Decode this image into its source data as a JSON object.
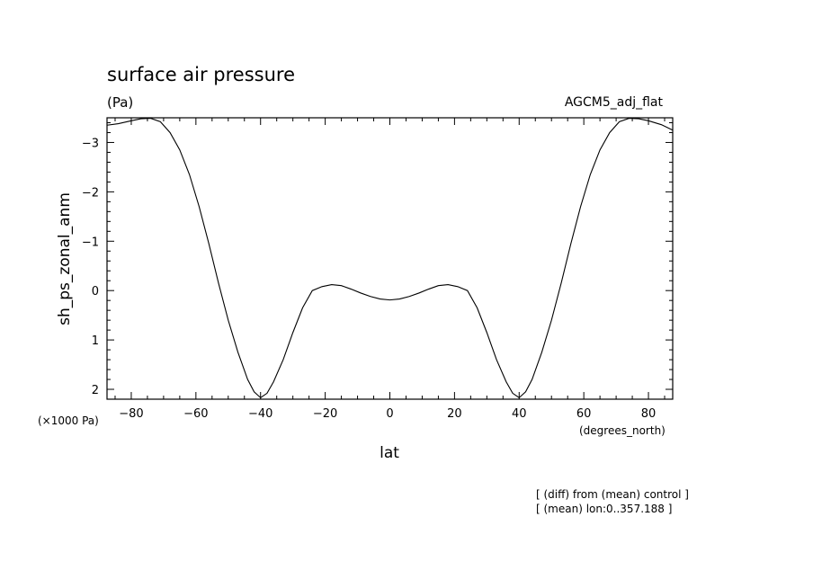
{
  "chart_data": {
    "type": "line",
    "title": "surface air pressure",
    "units": "(Pa)",
    "dataset": "AGCM5_adj_flat",
    "xlabel": "lat",
    "ylabel": "sh_ps_zonal_anm",
    "x_units": "(degrees_north)",
    "y_scale": "(×1000 Pa)",
    "notes": [
      "[ (diff) from (mean) control ]",
      "[ (mean) lon:0..357.188 ]"
    ],
    "xlim": [
      -87.5,
      87.5
    ],
    "ylim": [
      2.2,
      -3.5
    ],
    "y_inverted": true,
    "x_ticks": [
      -80,
      -60,
      -40,
      -20,
      0,
      20,
      40,
      60,
      80
    ],
    "x_tick_labels": [
      "−80",
      "−60",
      "−40",
      "−20",
      "0",
      "20",
      "40",
      "60",
      "80"
    ],
    "y_ticks": [
      -3,
      -2,
      -1,
      0,
      1,
      2
    ],
    "y_tick_labels": [
      "−3",
      "−2",
      "−1",
      "0",
      "1",
      "2"
    ],
    "grid": false,
    "series": [
      {
        "x": [
          -87.5,
          -84,
          -80,
          -77,
          -74,
          -71,
          -68,
          -65,
          -62,
          -59,
          -56,
          -53,
          -50,
          -47,
          -44,
          -42,
          -40,
          -38,
          -36,
          -33,
          -30,
          -27,
          -24,
          -21,
          -18,
          -15,
          -12,
          -9,
          -6,
          -3,
          0,
          3,
          6,
          9,
          12,
          15,
          18,
          21,
          24,
          27,
          30,
          33,
          36,
          38,
          40,
          42,
          44,
          47,
          50,
          53,
          56,
          59,
          62,
          65,
          68,
          71,
          74,
          77,
          80,
          84,
          87.5
        ],
        "y": [
          -3.35,
          -3.38,
          -3.44,
          -3.48,
          -3.49,
          -3.42,
          -3.2,
          -2.85,
          -2.35,
          -1.7,
          -0.95,
          -0.15,
          0.6,
          1.25,
          1.8,
          2.05,
          2.17,
          2.08,
          1.85,
          1.4,
          0.85,
          0.35,
          0.0,
          -0.08,
          -0.12,
          -0.1,
          -0.03,
          0.05,
          0.12,
          0.17,
          0.19,
          0.17,
          0.12,
          0.05,
          -0.03,
          -0.1,
          -0.12,
          -0.08,
          0.0,
          0.35,
          0.85,
          1.4,
          1.85,
          2.08,
          2.17,
          2.05,
          1.8,
          1.25,
          0.6,
          -0.15,
          -0.95,
          -1.7,
          -2.35,
          -2.85,
          -3.2,
          -3.42,
          -3.49,
          -3.48,
          -3.44,
          -3.36,
          -3.25
        ]
      }
    ]
  }
}
